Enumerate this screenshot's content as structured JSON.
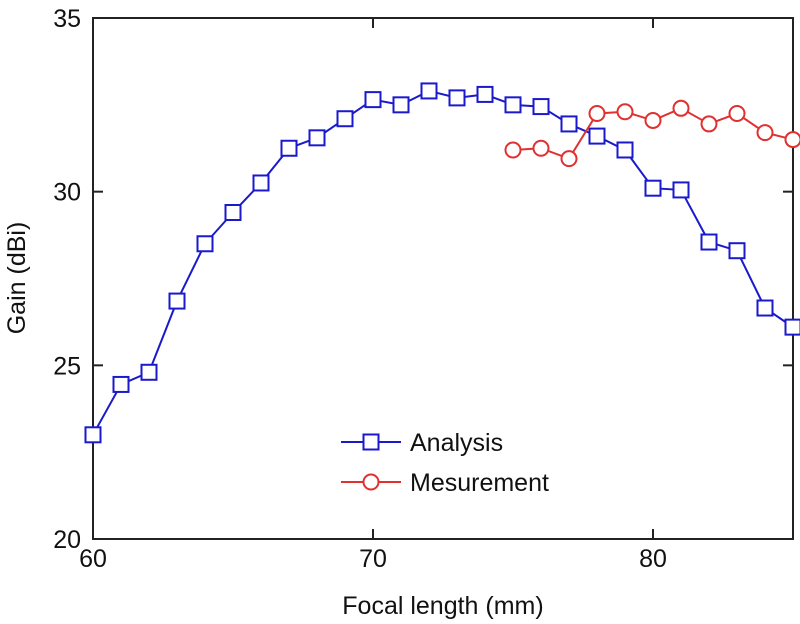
{
  "chart_data": {
    "type": "line",
    "title": "",
    "xlabel": "Focal length (mm)",
    "ylabel": "Gain (dBi)",
    "xlim": [
      60,
      85
    ],
    "ylim": [
      20,
      35
    ],
    "xticks": [
      60,
      70,
      80
    ],
    "yticks": [
      20,
      25,
      30,
      35
    ],
    "x_tick_labels": [
      "60",
      "70",
      "80"
    ],
    "y_tick_labels": [
      "20",
      "25",
      "30",
      "35"
    ],
    "grid": false,
    "legend_position": "bottom-center",
    "series": [
      {
        "name": "Analysis",
        "color": "#1a1acc",
        "marker": "square",
        "x": [
          60,
          61,
          62,
          63,
          64,
          65,
          66,
          67,
          68,
          69,
          70,
          71,
          72,
          73,
          74,
          75,
          76,
          77,
          78,
          79,
          80,
          81,
          82,
          83,
          84,
          85
        ],
        "y": [
          23.0,
          24.45,
          24.8,
          26.85,
          28.5,
          29.4,
          30.25,
          31.25,
          31.55,
          32.1,
          32.65,
          32.5,
          32.9,
          32.7,
          32.8,
          32.5,
          32.45,
          31.95,
          31.6,
          31.2,
          30.1,
          30.05,
          28.55,
          28.3,
          26.65,
          26.1
        ]
      },
      {
        "name": "Mesurement",
        "color": "#e03030",
        "marker": "circle",
        "x": [
          75,
          76,
          77,
          78,
          79,
          80,
          81,
          82,
          83,
          84,
          85
        ],
        "y": [
          31.2,
          31.25,
          30.95,
          32.25,
          32.3,
          32.05,
          32.4,
          31.95,
          32.25,
          31.7,
          31.5
        ]
      }
    ]
  }
}
